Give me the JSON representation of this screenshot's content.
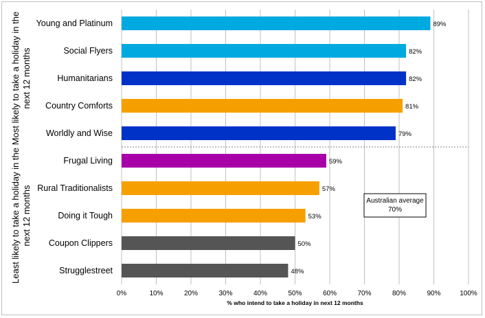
{
  "chart_data": {
    "type": "bar",
    "orientation": "horizontal",
    "title": "",
    "xlabel": "% who intend to take a holiday in next 12 months",
    "ylabel": "",
    "xlim": [
      0,
      100
    ],
    "x_ticks": [
      "0%",
      "10%",
      "20%",
      "30%",
      "40%",
      "50%",
      "60%",
      "70%",
      "80%",
      "90%",
      "100%"
    ],
    "grid": "vertical",
    "categories": [
      "Young and Platinum",
      "Social Flyers",
      "Humanitarians",
      "Country Comforts",
      "Worldly and Wise",
      "Frugal Living",
      "Rural Traditionalists",
      "Doing it Tough",
      "Coupon Clippers",
      "Strugglestreet"
    ],
    "values": [
      89,
      82,
      82,
      81,
      79,
      59,
      57,
      53,
      50,
      48
    ],
    "value_labels": [
      "89%",
      "82%",
      "82%",
      "81%",
      "79%",
      "59%",
      "57%",
      "53%",
      "50%",
      "48%"
    ],
    "bar_colors": [
      "#00a9e0",
      "#00a9e0",
      "#0032c8",
      "#f5a000",
      "#0032c8",
      "#a800a8",
      "#f5a000",
      "#f5a000",
      "#555555",
      "#555555"
    ],
    "groups": [
      {
        "label_lines": [
          "Most likely to take a holiday in the",
          "next 12 months"
        ],
        "start": 0,
        "end": 4
      },
      {
        "label_lines": [
          "Least likely to take a holiday in the",
          "next 12 months"
        ],
        "start": 5,
        "end": 9
      }
    ],
    "annotation": {
      "lines": [
        "Australian average",
        "70%"
      ],
      "value": 70
    }
  }
}
